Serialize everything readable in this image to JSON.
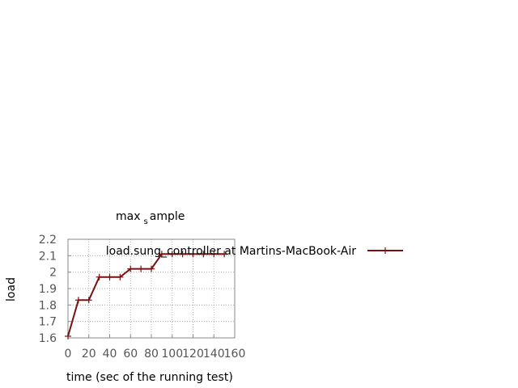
{
  "chart_data": {
    "type": "line",
    "title": {
      "pre": "max",
      "sub": "s",
      "post": "ample"
    },
    "xlabel": "time (sec of the running test)",
    "ylabel": "load",
    "xlim": [
      0,
      160
    ],
    "ylim": [
      1.6,
      2.2
    ],
    "xticks": [
      "0",
      "20",
      "40",
      "60",
      "80",
      "100",
      "120",
      "140",
      "160"
    ],
    "yticks": [
      "1.6",
      "1.7",
      "1.8",
      "1.9",
      "2",
      "2.1",
      "2.2"
    ],
    "grid": true,
    "legend_position": "top-right",
    "series": [
      {
        "name": "load.sung_controller at Martins-MacBook-Air",
        "color": "#7a1010",
        "x": [
          0,
          10,
          20,
          30,
          40,
          50,
          60,
          70,
          80,
          90,
          100,
          110,
          120,
          130,
          140,
          150
        ],
        "y": [
          1.61,
          1.83,
          1.83,
          1.97,
          1.97,
          1.97,
          2.02,
          2.02,
          2.02,
          2.11,
          2.11,
          2.11,
          2.11,
          2.11,
          2.11,
          2.11
        ]
      }
    ]
  }
}
